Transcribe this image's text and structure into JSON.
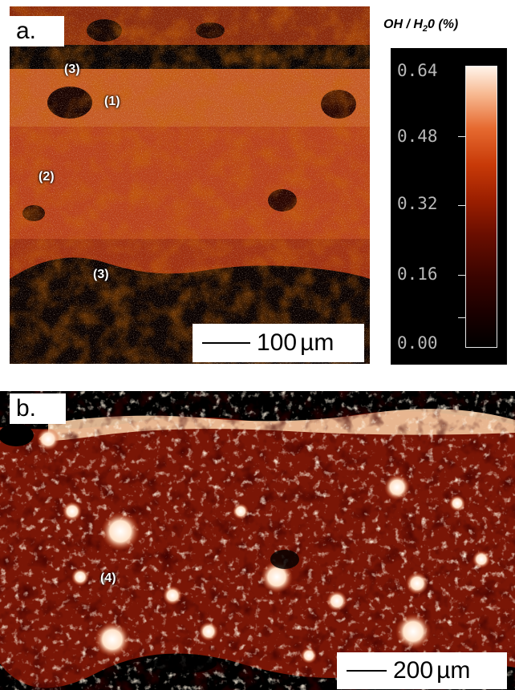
{
  "panel_a": {
    "letter": "a.",
    "labels": [
      "(3)",
      "(1)",
      "(2)",
      "(3)"
    ],
    "scalebar": {
      "value": "100",
      "unit": "µm"
    }
  },
  "panel_b": {
    "letter": "b.",
    "labels": [
      "(4)"
    ],
    "scalebar": {
      "value": "200",
      "unit": "µm"
    }
  },
  "colorbar": {
    "title": "OH / H",
    "title_sub": "2",
    "title_rest": "0  (%)",
    "ticks": [
      "0.64",
      "0.48",
      "0.32",
      "0.16",
      "0.00"
    ],
    "colors": {
      "low": "#000000",
      "mid": "#9a1e00",
      "high": "#fff4ea"
    }
  }
}
